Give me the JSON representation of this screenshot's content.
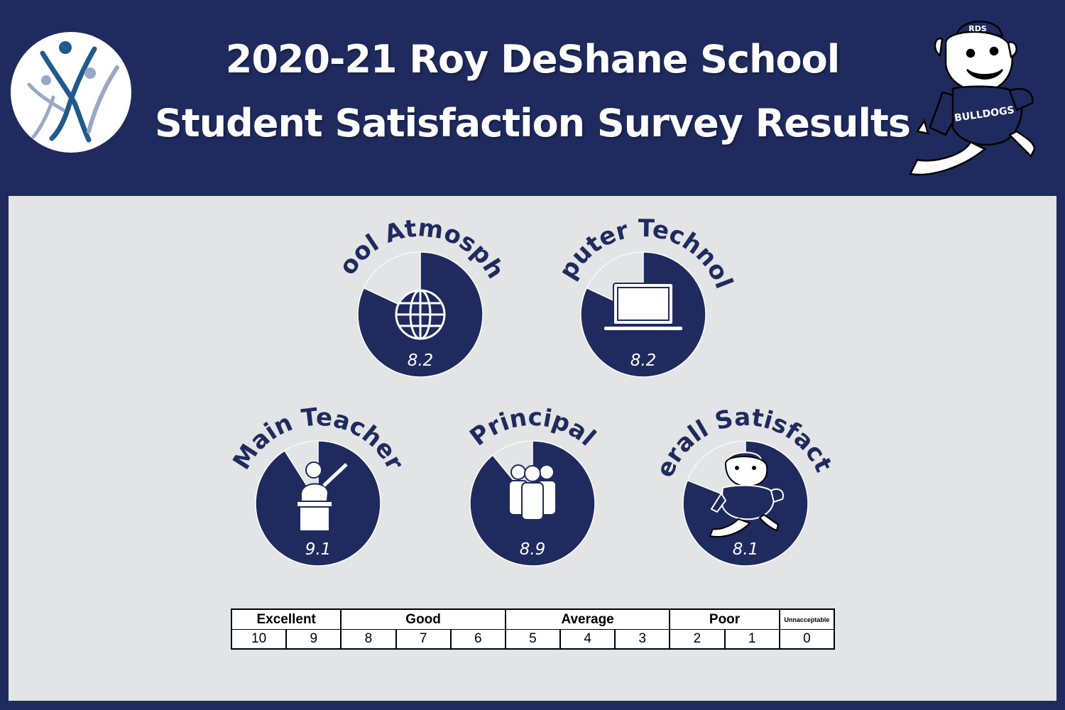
{
  "header": {
    "title_line1": "2020-21 Roy DeShane School",
    "title_line2": "Student Satisfaction Survey Results"
  },
  "colors": {
    "navy": "#1f2b5e",
    "panel_bg": "#e3e4e6",
    "pie_fill": "#1f2b5e",
    "pie_remainder": "#e3e4e6",
    "white": "#ffffff"
  },
  "chart_data": {
    "type": "pie",
    "max_value": 10,
    "items": [
      {
        "label": "School Atmosphere",
        "value": 8.2,
        "display": "8.2",
        "icon": "globe-icon"
      },
      {
        "label": "Computer Technology",
        "value": 8.2,
        "display": "8.2",
        "icon": "laptop-icon"
      },
      {
        "label": "Main Teacher",
        "value": 9.1,
        "display": "9.1",
        "icon": "teacher-icon"
      },
      {
        "label": "Principal",
        "value": 8.9,
        "display": "8.9",
        "icon": "people-group-icon"
      },
      {
        "label": "Overall Satisfaction",
        "value": 8.1,
        "display": "8.1",
        "icon": "bulldog-mascot-icon"
      }
    ]
  },
  "scale": {
    "categories": [
      {
        "label": "Excellent",
        "span": 2
      },
      {
        "label": "Good",
        "span": 3
      },
      {
        "label": "Average",
        "span": 3
      },
      {
        "label": "Poor",
        "span": 2
      },
      {
        "label": "Unnacceptable",
        "span": 1
      }
    ],
    "numbers": [
      "10",
      "9",
      "8",
      "7",
      "6",
      "5",
      "4",
      "3",
      "2",
      "1",
      "0"
    ]
  },
  "mascot": {
    "cap_text": "RDS",
    "shirt_text": "BULLDOGS"
  }
}
